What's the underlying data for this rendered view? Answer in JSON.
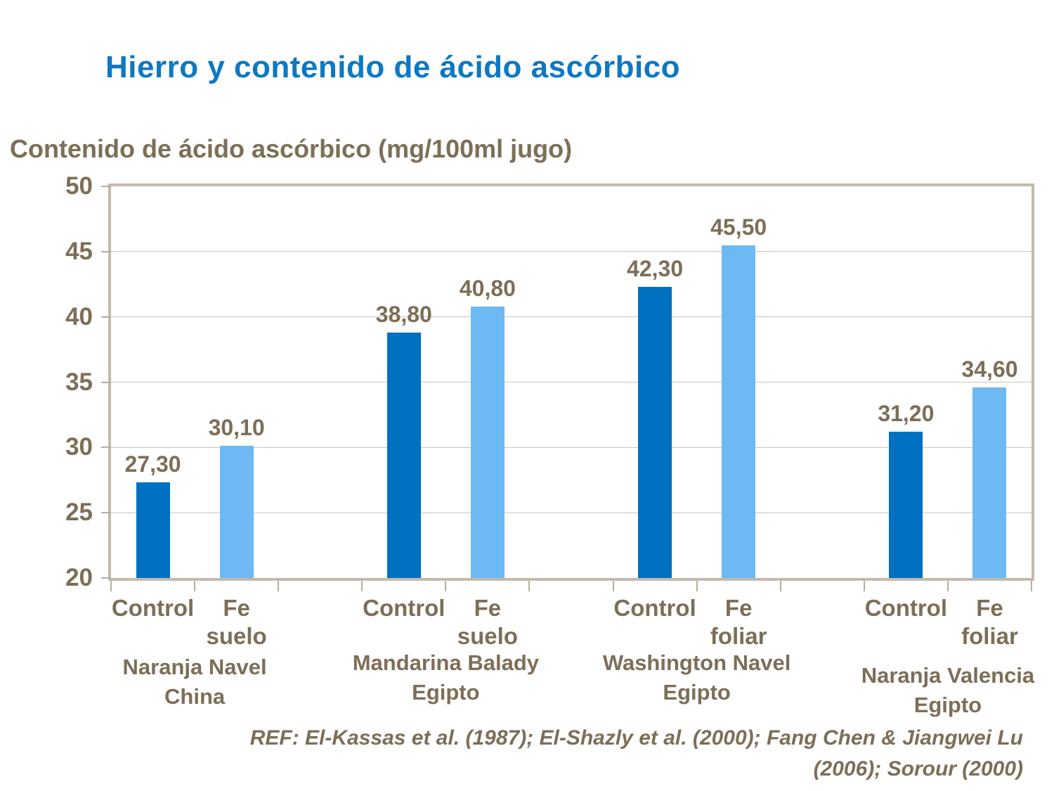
{
  "slide": {
    "title": "Hierro y contenido de ácido ascórbico",
    "reference": [
      "REF: El-Kassas et al. (1987); El-Shazly et al. (2000); Fang Chen & Jiangwei Lu",
      "(2006); Sorour (2000)"
    ]
  },
  "colors": {
    "title_blue": "#0E78C2",
    "text_brown": "#7D6E57",
    "bar_dark_blue": "#0070C0",
    "bar_light_blue": "#6CB9F4",
    "frame_tan": "#C3BAAD",
    "gridline_tan": "#CBC4B9"
  },
  "chart_data": {
    "type": "bar",
    "title": "Hierro y contenido de ácido ascórbico",
    "ylabel": "Contenido de ácido ascórbico (mg/100ml jugo)",
    "xlabel": "",
    "ylim": [
      20,
      50
    ],
    "ytick_interval": 5,
    "yticks": [
      20,
      25,
      30,
      35,
      40,
      45,
      50
    ],
    "grid": true,
    "legend_position": "none",
    "value_format": "comma-decimal",
    "series_colors": {
      "control": "#0070C0",
      "fe_treatment": "#6CB9F4"
    },
    "groups": [
      {
        "name": "Naranja Navel\nChina",
        "bars": [
          {
            "label": "Control",
            "value": 27.3,
            "display_value": "27,30",
            "series": "control"
          },
          {
            "label": "Fe\nsuelo",
            "value": 30.1,
            "display_value": "30,10",
            "series": "fe_treatment"
          }
        ]
      },
      {
        "name": "Mandarina Balady\nEgipto",
        "bars": [
          {
            "label": "Control",
            "value": 38.8,
            "display_value": "38,80",
            "series": "control"
          },
          {
            "label": "Fe\nsuelo",
            "value": 40.8,
            "display_value": "40,80",
            "series": "fe_treatment"
          }
        ]
      },
      {
        "name": "Washington Navel\nEgipto",
        "bars": [
          {
            "label": "Control",
            "value": 42.3,
            "display_value": "42,30",
            "series": "control"
          },
          {
            "label": "Fe\nfoliar",
            "value": 45.5,
            "display_value": "45,50",
            "series": "fe_treatment"
          }
        ]
      },
      {
        "name": "Naranja Valencia\nEgipto",
        "bars": [
          {
            "label": "Control",
            "value": 31.2,
            "display_value": "31,20",
            "series": "control"
          },
          {
            "label": "Fe\nfoliar",
            "value": 34.6,
            "display_value": "34,60",
            "series": "fe_treatment"
          }
        ]
      }
    ]
  }
}
